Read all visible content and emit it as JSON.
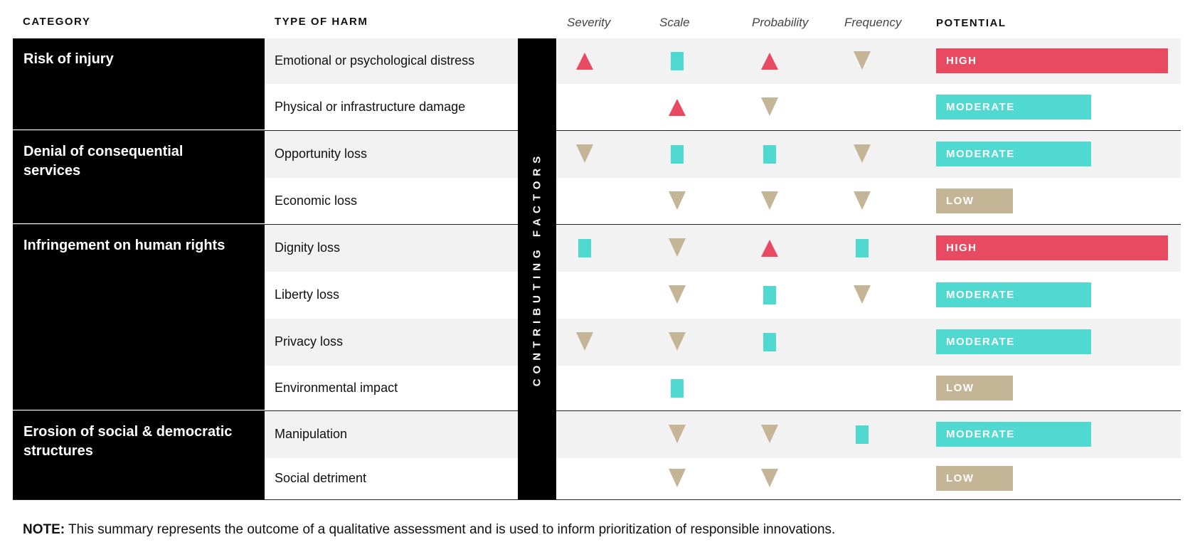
{
  "headers": {
    "category": "CATEGORY",
    "type_of_harm": "TYPE OF HARM",
    "severity": "Severity",
    "scale": "Scale",
    "probability": "Probability",
    "frequency": "Frequency",
    "potential": "POTENTIAL",
    "contributing_factors": "CONTRIBUTING FACTORS"
  },
  "colors": {
    "high": "#e84a62",
    "moderate": "#4fd9d1",
    "low": "#c4b596"
  },
  "categories": [
    {
      "label": "Risk of injury",
      "rows": [
        0,
        1
      ]
    },
    {
      "label": "Denial of consequential services",
      "rows": [
        2,
        3
      ]
    },
    {
      "label": "Infringement on human rights",
      "rows": [
        4,
        5,
        6,
        7
      ]
    },
    {
      "label": "Erosion of social & democratic structures",
      "rows": [
        8,
        9
      ]
    }
  ],
  "rows": [
    {
      "harm": "Emotional or psychological distress",
      "severity": "up",
      "scale": "square",
      "probability": "up",
      "frequency": "down",
      "potential": "HIGH",
      "potential_level": 1.0
    },
    {
      "harm": "Physical or infrastructure damage",
      "severity": "",
      "scale": "up",
      "probability": "down",
      "frequency": "",
      "potential": "MODERATE",
      "potential_level": 0.67
    },
    {
      "harm": "Opportunity loss",
      "severity": "down",
      "scale": "square",
      "probability": "square",
      "frequency": "down",
      "potential": "MODERATE",
      "potential_level": 0.67
    },
    {
      "harm": "Economic loss",
      "severity": "",
      "scale": "down",
      "probability": "down",
      "frequency": "down",
      "potential": "LOW",
      "potential_level": 0.33
    },
    {
      "harm": "Dignity loss",
      "severity": "square",
      "scale": "down",
      "probability": "up",
      "frequency": "square",
      "potential": "HIGH",
      "potential_level": 1.0
    },
    {
      "harm": "Liberty loss",
      "severity": "",
      "scale": "down",
      "probability": "square",
      "frequency": "down",
      "potential": "MODERATE",
      "potential_level": 0.67
    },
    {
      "harm": "Privacy loss",
      "severity": "down",
      "scale": "down",
      "probability": "square",
      "frequency": "",
      "potential": "MODERATE",
      "potential_level": 0.67
    },
    {
      "harm": "Environmental impact",
      "severity": "",
      "scale": "square",
      "probability": "",
      "frequency": "",
      "potential": "LOW",
      "potential_level": 0.33
    },
    {
      "harm": "Manipulation",
      "severity": "",
      "scale": "down",
      "probability": "down",
      "frequency": "square",
      "potential": "MODERATE",
      "potential_level": 0.67
    },
    {
      "harm": "Social detriment",
      "severity": "",
      "scale": "down",
      "probability": "down",
      "frequency": "",
      "potential": "LOW",
      "potential_level": 0.33
    }
  ],
  "note": {
    "label": "NOTE:",
    "text": " This summary represents the outcome of a qualitative assessment and is used to inform prioritization of responsible innovations."
  }
}
